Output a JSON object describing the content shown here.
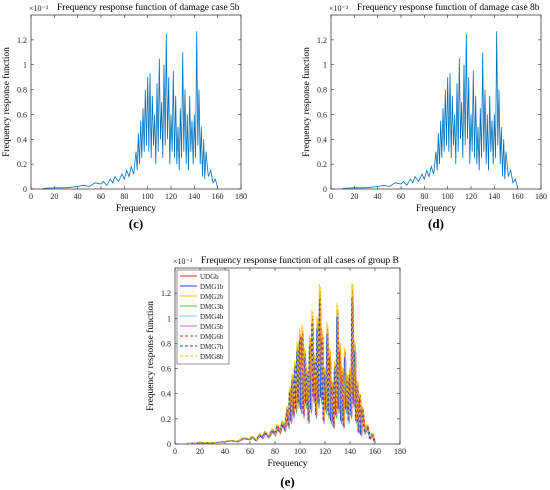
{
  "chart_data": [
    {
      "type": "line",
      "title": "Frequency response function of damage case 5b",
      "xlabel": "Frequency",
      "ylabel": "Frequency response function",
      "xlim": [
        0,
        180
      ],
      "ylim": [
        0,
        1.4
      ],
      "xticks": [
        0,
        20,
        40,
        60,
        80,
        100,
        120,
        140,
        160,
        180
      ],
      "yticks": [
        0,
        0.2,
        0.4,
        0.6,
        0.8,
        1,
        1.2
      ],
      "y_exponent": "×10⁻³",
      "panel_label": "(c)",
      "grid": false,
      "series": [
        {
          "color": "#0072BD",
          "x": [
            10,
            20,
            30,
            40,
            45,
            50,
            55,
            60,
            62,
            65,
            68,
            70,
            72,
            75,
            78,
            80,
            82,
            84,
            86,
            88,
            90,
            91,
            92,
            93,
            94,
            95,
            96,
            97,
            98,
            99,
            100,
            101,
            102,
            103,
            104,
            105,
            106,
            107,
            108,
            109,
            110,
            111,
            112,
            113,
            114,
            115,
            116,
            117,
            118,
            119,
            120,
            121,
            122,
            123,
            124,
            125,
            126,
            127,
            128,
            129,
            130,
            131,
            132,
            133,
            134,
            135,
            136,
            137,
            138,
            139,
            140,
            141,
            142,
            143,
            144,
            145,
            146,
            147,
            148,
            149,
            150,
            152,
            154,
            156,
            158,
            160
          ],
          "y": [
            0.005,
            0.01,
            0.01,
            0.02,
            0.03,
            0.02,
            0.05,
            0.04,
            0.06,
            0.03,
            0.08,
            0.05,
            0.1,
            0.06,
            0.12,
            0.08,
            0.15,
            0.1,
            0.18,
            0.12,
            0.3,
            0.15,
            0.45,
            0.2,
            0.55,
            0.25,
            0.65,
            0.3,
            0.8,
            0.35,
            0.9,
            0.3,
            0.93,
            0.25,
            0.75,
            0.35,
            0.6,
            0.2,
            0.85,
            0.3,
            1.05,
            0.4,
            0.7,
            0.25,
            1.0,
            0.35,
            1.25,
            0.4,
            0.9,
            0.2,
            0.6,
            0.3,
            0.95,
            0.25,
            0.75,
            0.2,
            0.5,
            0.15,
            0.65,
            0.25,
            1.1,
            0.3,
            0.8,
            0.2,
            0.6,
            0.15,
            0.75,
            0.3,
            0.55,
            0.2,
            0.6,
            0.25,
            1.27,
            0.35,
            0.8,
            0.2,
            0.5,
            0.1,
            0.4,
            0.08,
            0.3,
            0.1,
            0.15,
            0.05,
            0.08,
            0.01
          ]
        }
      ]
    },
    {
      "type": "line",
      "title": "Frequency response function of damage case 8b",
      "xlabel": "Frequency",
      "ylabel": "Frequency response function",
      "xlim": [
        0,
        180
      ],
      "ylim": [
        0,
        1.4
      ],
      "xticks": [
        0,
        20,
        40,
        60,
        80,
        100,
        120,
        140,
        160,
        180
      ],
      "yticks": [
        0,
        0.2,
        0.4,
        0.6,
        0.8,
        1,
        1.2
      ],
      "y_exponent": "×10⁻³",
      "panel_label": "(d)",
      "grid": false,
      "series": [
        {
          "color": "#0072BD",
          "x": [
            10,
            20,
            30,
            40,
            45,
            50,
            55,
            60,
            62,
            65,
            68,
            70,
            72,
            75,
            78,
            80,
            82,
            84,
            86,
            88,
            90,
            91,
            92,
            93,
            94,
            95,
            96,
            97,
            98,
            99,
            100,
            101,
            102,
            103,
            104,
            105,
            106,
            107,
            108,
            109,
            110,
            111,
            112,
            113,
            114,
            115,
            116,
            117,
            118,
            119,
            120,
            121,
            122,
            123,
            124,
            125,
            126,
            127,
            128,
            129,
            130,
            131,
            132,
            133,
            134,
            135,
            136,
            137,
            138,
            139,
            140,
            141,
            142,
            143,
            144,
            145,
            146,
            147,
            148,
            149,
            150,
            152,
            154,
            156,
            158,
            160
          ],
          "y": [
            0.005,
            0.01,
            0.01,
            0.02,
            0.03,
            0.02,
            0.05,
            0.04,
            0.06,
            0.03,
            0.08,
            0.05,
            0.1,
            0.06,
            0.12,
            0.08,
            0.15,
            0.1,
            0.18,
            0.12,
            0.3,
            0.15,
            0.45,
            0.2,
            0.55,
            0.25,
            0.65,
            0.3,
            0.8,
            0.35,
            0.9,
            0.3,
            0.93,
            0.25,
            0.75,
            0.35,
            0.6,
            0.2,
            0.85,
            0.3,
            1.05,
            0.4,
            0.7,
            0.25,
            1.0,
            0.35,
            1.25,
            0.4,
            0.9,
            0.2,
            0.6,
            0.3,
            0.95,
            0.25,
            0.75,
            0.2,
            0.5,
            0.15,
            0.65,
            0.25,
            1.1,
            0.3,
            0.8,
            0.2,
            0.6,
            0.15,
            0.75,
            0.3,
            0.55,
            0.2,
            0.6,
            0.25,
            1.27,
            0.35,
            0.8,
            0.2,
            0.5,
            0.1,
            0.4,
            0.08,
            0.3,
            0.1,
            0.15,
            0.05,
            0.08,
            0.01
          ]
        }
      ]
    },
    {
      "type": "line",
      "title": "Frequency response function of all cases of group B",
      "xlabel": "Frequency",
      "ylabel": "Frequency response function",
      "xlim": [
        0,
        180
      ],
      "ylim": [
        0,
        1.4
      ],
      "xticks": [
        0,
        20,
        40,
        60,
        80,
        100,
        120,
        140,
        160,
        180
      ],
      "yticks": [
        0,
        0.2,
        0.4,
        0.6,
        0.8,
        1,
        1.2
      ],
      "y_exponent": "×10⁻³",
      "panel_label": "(e)",
      "legend": "top-left",
      "grid": false,
      "series": [
        {
          "name": "UDGb",
          "color": "#e8262b",
          "dash": false
        },
        {
          "name": "DMG1b",
          "color": "#1f3fd6",
          "dash": false
        },
        {
          "name": "DMG2b",
          "color": "#f2c200",
          "dash": false
        },
        {
          "name": "DMG3b",
          "color": "#3cc43c",
          "dash": false
        },
        {
          "name": "DMG4b",
          "color": "#6fd3e0",
          "dash": false
        },
        {
          "name": "DMG5b",
          "color": "#d65ad6",
          "dash": false
        },
        {
          "name": "DMG6b",
          "color": "#e8262b",
          "dash": true
        },
        {
          "name": "DMG7b",
          "color": "#1f3fd6",
          "dash": true
        },
        {
          "name": "DMG8b",
          "color": "#f2c200",
          "dash": true
        }
      ]
    }
  ]
}
